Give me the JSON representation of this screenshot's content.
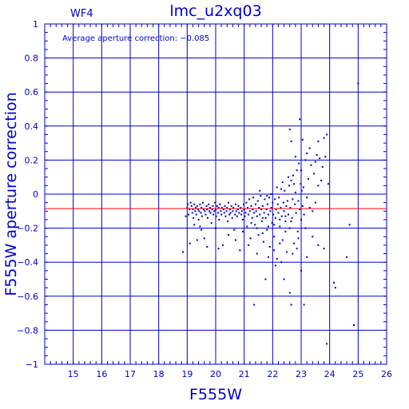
{
  "chart_data": {
    "type": "scatter",
    "title": "lmc_u2xq03",
    "chip_label": "WF4",
    "annotation": "Average aperture correction:  −0.085",
    "xlabel": "F555W",
    "ylabel": "F555W aperture correction",
    "xlim": [
      14,
      26
    ],
    "ylim": [
      -1,
      1
    ],
    "x_ticks": [
      15,
      16,
      17,
      18,
      19,
      20,
      21,
      22,
      23,
      24,
      25,
      26
    ],
    "y_ticks": [
      {
        "v": 1,
        "label": "1"
      },
      {
        "v": 0.8,
        "label": "0.8"
      },
      {
        "v": 0.6,
        "label": "0.6"
      },
      {
        "v": 0.4,
        "label": "0.4"
      },
      {
        "v": 0.2,
        "label": "0.2"
      },
      {
        "v": 0,
        "label": "0"
      },
      {
        "v": -0.2,
        "label": "−0.2"
      },
      {
        "v": -0.4,
        "label": "−0.4"
      },
      {
        "v": -0.6,
        "label": "−0.6"
      },
      {
        "v": -0.8,
        "label": "−0.8"
      },
      {
        "v": -1,
        "label": "−1"
      }
    ],
    "grid": true,
    "average_line": -0.085,
    "colors": {
      "axis": "#0000cc",
      "points": "#0000cc",
      "average_line": "#ff0000"
    },
    "points": [
      [
        18.85,
        -0.34
      ],
      [
        18.95,
        -0.13
      ],
      [
        19.0,
        -0.08
      ],
      [
        19.02,
        -0.06
      ],
      [
        19.05,
        -0.12
      ],
      [
        19.08,
        -0.09
      ],
      [
        19.1,
        -0.29
      ],
      [
        19.12,
        -0.05
      ],
      [
        19.15,
        -0.07
      ],
      [
        19.18,
        -0.11
      ],
      [
        19.2,
        -0.09
      ],
      [
        19.22,
        -0.14
      ],
      [
        19.25,
        -0.06
      ],
      [
        19.28,
        -0.1
      ],
      [
        19.3,
        -0.08
      ],
      [
        19.32,
        -0.12
      ],
      [
        19.35,
        -0.07
      ],
      [
        19.38,
        -0.09
      ],
      [
        19.4,
        -0.15
      ],
      [
        19.42,
        -0.1
      ],
      [
        19.45,
        -0.06
      ],
      [
        19.48,
        -0.11
      ],
      [
        19.5,
        -0.08
      ],
      [
        19.52,
        -0.13
      ],
      [
        19.55,
        -0.05
      ],
      [
        19.58,
        -0.09
      ],
      [
        19.6,
        -0.26
      ],
      [
        19.62,
        -0.1
      ],
      [
        19.65,
        -0.12
      ],
      [
        19.68,
        -0.07
      ],
      [
        19.7,
        -0.09
      ],
      [
        19.72,
        -0.14
      ],
      [
        19.75,
        -0.06
      ],
      [
        19.78,
        -0.1
      ],
      [
        19.8,
        -0.08
      ],
      [
        19.82,
        -0.11
      ],
      [
        19.85,
        -0.17
      ],
      [
        19.88,
        -0.09
      ],
      [
        19.9,
        -0.07
      ],
      [
        19.92,
        -0.12
      ],
      [
        19.95,
        -0.1
      ],
      [
        19.98,
        -0.05
      ],
      [
        20.0,
        -0.09
      ],
      [
        20.02,
        -0.13
      ],
      [
        20.05,
        -0.07
      ],
      [
        20.08,
        -0.11
      ],
      [
        20.1,
        -0.08
      ],
      [
        20.12,
        -0.15
      ],
      [
        20.15,
        -0.06
      ],
      [
        20.18,
        -0.1
      ],
      [
        20.2,
        -0.12
      ],
      [
        20.22,
        -0.08
      ],
      [
        20.25,
        -0.3
      ],
      [
        20.28,
        -0.09
      ],
      [
        20.3,
        -0.11
      ],
      [
        20.32,
        -0.07
      ],
      [
        20.35,
        -0.13
      ],
      [
        20.38,
        -0.1
      ],
      [
        20.4,
        -0.08
      ],
      [
        20.42,
        -0.16
      ],
      [
        20.45,
        -0.05
      ],
      [
        20.48,
        -0.12
      ],
      [
        20.5,
        -0.09
      ],
      [
        20.52,
        -0.11
      ],
      [
        20.55,
        -0.07
      ],
      [
        20.58,
        -0.14
      ],
      [
        20.6,
        -0.1
      ],
      [
        20.62,
        -0.08
      ],
      [
        20.65,
        -0.21
      ],
      [
        20.68,
        -0.12
      ],
      [
        20.7,
        -0.06
      ],
      [
        20.72,
        -0.1
      ],
      [
        20.75,
        -0.13
      ],
      [
        20.78,
        -0.09
      ],
      [
        20.8,
        -0.07
      ],
      [
        20.82,
        -0.11
      ],
      [
        20.85,
        -0.33
      ],
      [
        20.88,
        -0.08
      ],
      [
        20.9,
        -0.12
      ],
      [
        20.92,
        -0.1
      ],
      [
        20.95,
        -0.15
      ],
      [
        20.98,
        -0.06
      ],
      [
        21.0,
        -0.09
      ],
      [
        21.02,
        -0.13
      ],
      [
        21.05,
        -0.11
      ],
      [
        21.08,
        -0.05
      ],
      [
        21.1,
        -0.19
      ],
      [
        21.12,
        -0.08
      ],
      [
        21.15,
        -0.12
      ],
      [
        21.18,
        -0.03
      ],
      [
        21.2,
        -0.1
      ],
      [
        21.22,
        -0.26
      ],
      [
        21.25,
        -0.07
      ],
      [
        21.28,
        -0.14
      ],
      [
        21.3,
        -0.09
      ],
      [
        21.32,
        -0.02
      ],
      [
        21.35,
        -0.11
      ],
      [
        21.38,
        -0.18
      ],
      [
        21.4,
        -0.06
      ],
      [
        21.42,
        -0.1
      ],
      [
        21.45,
        -0.13
      ],
      [
        21.48,
        -0.04
      ],
      [
        21.5,
        -0.24
      ],
      [
        21.52,
        -0.08
      ],
      [
        21.55,
        -0.12
      ],
      [
        21.58,
        -0.01
      ],
      [
        21.6,
        -0.09
      ],
      [
        21.62,
        -0.16
      ],
      [
        21.65,
        -0.07
      ],
      [
        21.68,
        -0.28
      ],
      [
        21.7,
        -0.11
      ],
      [
        21.72,
        -0.03
      ],
      [
        21.75,
        -0.14
      ],
      [
        21.78,
        -0.09
      ],
      [
        21.8,
        -0.21
      ],
      [
        21.82,
        -0.06
      ],
      [
        21.85,
        -0.12
      ],
      [
        21.88,
        -0.02
      ],
      [
        21.9,
        -0.31
      ],
      [
        21.92,
        -0.1
      ],
      [
        21.95,
        -0.08
      ],
      [
        21.98,
        -0.17
      ],
      [
        22.0,
        -0.05
      ],
      [
        22.02,
        -0.12
      ],
      [
        22.05,
        -0.25
      ],
      [
        22.08,
        -0.03
      ],
      [
        22.1,
        -0.14
      ],
      [
        22.12,
        -0.09
      ],
      [
        22.15,
        -0.38
      ],
      [
        22.18,
        -0.06
      ],
      [
        22.2,
        -0.11
      ],
      [
        22.22,
        -0.02
      ],
      [
        22.25,
        -0.19
      ],
      [
        22.28,
        -0.08
      ],
      [
        22.3,
        0.03
      ],
      [
        22.32,
        -0.13
      ],
      [
        22.35,
        -0.27
      ],
      [
        22.38,
        -0.05
      ],
      [
        22.4,
        -0.1
      ],
      [
        22.42,
        0.02
      ],
      [
        22.45,
        -0.16
      ],
      [
        22.48,
        -0.07
      ],
      [
        22.5,
        -0.34
      ],
      [
        22.52,
        -0.04
      ],
      [
        22.55,
        -0.12
      ],
      [
        22.58,
        0.05
      ],
      [
        22.6,
        -0.2
      ],
      [
        22.62,
        -0.08
      ],
      [
        22.65,
        0.08
      ],
      [
        22.68,
        -0.14
      ],
      [
        22.7,
        -0.03
      ],
      [
        22.72,
        0.11
      ],
      [
        22.75,
        -0.29
      ],
      [
        22.78,
        -0.06
      ],
      [
        22.8,
        0.01
      ],
      [
        22.82,
        -0.11
      ],
      [
        22.85,
        0.14
      ],
      [
        22.88,
        -0.22
      ],
      [
        22.9,
        -0.04
      ],
      [
        22.92,
        0.18
      ],
      [
        22.95,
        -0.09
      ],
      [
        22.98,
        0.06
      ],
      [
        23.0,
        -0.15
      ],
      [
        23.02,
        0.02
      ],
      [
        23.05,
        -0.07
      ],
      [
        23.08,
        0.04
      ],
      [
        23.1,
        -0.12
      ],
      [
        23.15,
        0.2
      ],
      [
        23.2,
        -0.02
      ],
      [
        23.25,
        0.09
      ],
      [
        23.3,
        -0.08
      ],
      [
        23.35,
        0.17
      ],
      [
        23.4,
        -0.1
      ],
      [
        23.45,
        0.12
      ],
      [
        23.5,
        -0.05
      ],
      [
        23.55,
        0.23
      ],
      [
        23.6,
        0.05
      ],
      [
        23.65,
        0.21
      ],
      [
        23.7,
        0.08
      ],
      [
        23.75,
        0.16
      ],
      [
        23.8,
        0.33
      ],
      [
        23.85,
        0.22
      ],
      [
        23.9,
        0.35
      ],
      [
        23.95,
        0.06
      ],
      [
        22.6,
        0.38
      ],
      [
        22.65,
        0.31
      ],
      [
        22.95,
        0.44
      ],
      [
        23.0,
        0.14
      ],
      [
        23.3,
        0.27
      ],
      [
        23.5,
        0.19
      ],
      [
        23.2,
        0.24
      ],
      [
        23.6,
        0.31
      ],
      [
        22.8,
        0.22
      ],
      [
        23.05,
        0.32
      ],
      [
        22.4,
        -0.5
      ],
      [
        22.6,
        -0.58
      ],
      [
        22.65,
        -0.65
      ],
      [
        22.85,
        -0.32
      ],
      [
        23.0,
        -0.45
      ],
      [
        23.1,
        -0.65
      ],
      [
        23.2,
        -0.37
      ],
      [
        23.4,
        -0.25
      ],
      [
        23.6,
        -0.3
      ],
      [
        23.8,
        -0.32
      ],
      [
        21.35,
        -0.65
      ],
      [
        21.75,
        -0.5
      ],
      [
        22.1,
        -0.42
      ],
      [
        22.3,
        -0.4
      ],
      [
        20.1,
        -0.32
      ],
      [
        20.0,
        -0.2
      ],
      [
        24.15,
        -0.52
      ],
      [
        24.2,
        -0.55
      ],
      [
        24.6,
        -0.37
      ],
      [
        24.7,
        -0.18
      ],
      [
        24.85,
        -0.77
      ],
      [
        23.9,
        -0.88
      ],
      [
        25.0,
        0.65
      ],
      [
        19.35,
        -0.27
      ],
      [
        19.5,
        -0.21
      ],
      [
        19.7,
        -0.31
      ],
      [
        20.45,
        -0.24
      ],
      [
        20.7,
        -0.27
      ],
      [
        20.95,
        -0.22
      ],
      [
        21.15,
        -0.3
      ],
      [
        21.45,
        -0.35
      ],
      [
        21.65,
        -0.23
      ],
      [
        21.85,
        -0.37
      ],
      [
        22.05,
        -0.33
      ],
      [
        22.25,
        -0.29
      ],
      [
        22.45,
        -0.22
      ],
      [
        22.7,
        -0.35
      ],
      [
        22.9,
        -0.26
      ],
      [
        23.15,
        -0.2
      ],
      [
        21.55,
        0.02
      ],
      [
        21.95,
        0.0
      ],
      [
        22.15,
        0.04
      ],
      [
        22.35,
        0.07
      ],
      [
        22.55,
        0.1
      ],
      [
        22.75,
        0.06
      ],
      [
        21.8,
        -0.01
      ],
      [
        21.25,
        -0.17
      ],
      [
        21.45,
        -0.2
      ],
      [
        21.65,
        -0.14
      ],
      [
        21.85,
        -0.19
      ],
      [
        22.05,
        -0.18
      ],
      [
        22.25,
        -0.15
      ],
      [
        22.45,
        -0.13
      ],
      [
        22.65,
        -0.16
      ],
      [
        19.25,
        -0.18
      ],
      [
        19.45,
        -0.19
      ]
    ]
  }
}
